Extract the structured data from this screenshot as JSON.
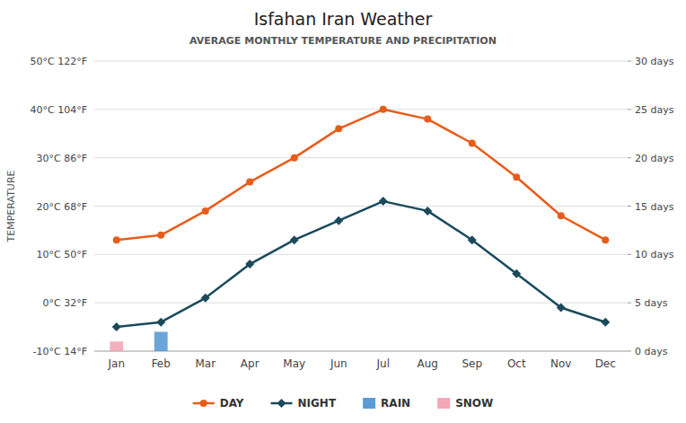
{
  "chart_data": {
    "type": "line",
    "title": "Isfahan Iran Weather",
    "subtitle": "AVERAGE MONTHLY TEMPERATURE AND PRECIPITATION",
    "ylabel": "TEMPERATURE",
    "categories": [
      "Jan",
      "Feb",
      "Mar",
      "Apr",
      "May",
      "Jun",
      "Jul",
      "Aug",
      "Sep",
      "Oct",
      "Nov",
      "Dec"
    ],
    "series": [
      {
        "name": "DAY",
        "type": "line",
        "color": "#e85c1a",
        "marker": "circle",
        "values": [
          13,
          14,
          19,
          25,
          30,
          36,
          40,
          38,
          33,
          26,
          18,
          13
        ]
      },
      {
        "name": "NIGHT",
        "type": "line",
        "color": "#1a4a5c",
        "marker": "diamond",
        "values": [
          -5,
          -4,
          1,
          8,
          13,
          17,
          21,
          19,
          13,
          6,
          -1,
          -4
        ]
      },
      {
        "name": "RAIN",
        "type": "bar",
        "axis": "y2",
        "color": "#5b9bd5",
        "values": [
          0,
          2,
          0,
          0,
          0,
          0,
          0,
          0,
          0,
          0,
          0,
          0
        ]
      },
      {
        "name": "SNOW",
        "type": "bar",
        "axis": "y2",
        "color": "#f4a7b9",
        "values": [
          1,
          0,
          0,
          0,
          0,
          0,
          0,
          0,
          0,
          0,
          0,
          0
        ]
      }
    ],
    "ylim": [
      -10,
      50
    ],
    "yticks": [
      {
        "value": -10,
        "label": "-10°C 14°F"
      },
      {
        "value": 0,
        "label": "0°C 32°F"
      },
      {
        "value": 10,
        "label": "10°C 50°F"
      },
      {
        "value": 20,
        "label": "20°C 68°F"
      },
      {
        "value": 30,
        "label": "30°C 86°F"
      },
      {
        "value": 40,
        "label": "40°C 104°F"
      },
      {
        "value": 50,
        "label": "50°C 122°F"
      }
    ],
    "y2lim": [
      0,
      30
    ],
    "y2ticks": [
      {
        "value": 0,
        "label": "0 days"
      },
      {
        "value": 5,
        "label": "5 days"
      },
      {
        "value": 10,
        "label": "10 days"
      },
      {
        "value": 15,
        "label": "15 days"
      },
      {
        "value": 20,
        "label": "20 days"
      },
      {
        "value": 25,
        "label": "25 days"
      },
      {
        "value": 30,
        "label": "30 days"
      }
    ],
    "grid": true,
    "legend": "bottom"
  }
}
